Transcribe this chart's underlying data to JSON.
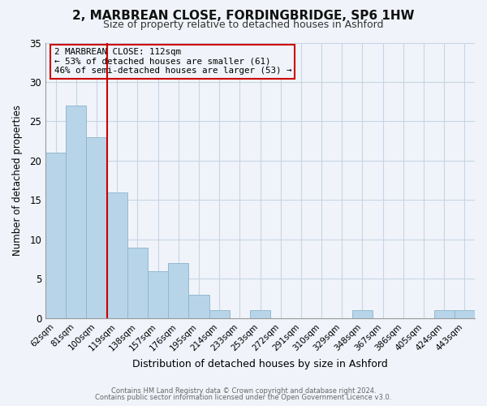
{
  "title": "2, MARBREAN CLOSE, FORDINGBRIDGE, SP6 1HW",
  "subtitle": "Size of property relative to detached houses in Ashford",
  "xlabel": "Distribution of detached houses by size in Ashford",
  "ylabel": "Number of detached properties",
  "footer_lines": [
    "Contains HM Land Registry data © Crown copyright and database right 2024.",
    "Contains public sector information licensed under the Open Government Licence v3.0."
  ],
  "categories": [
    "62sqm",
    "81sqm",
    "100sqm",
    "119sqm",
    "138sqm",
    "157sqm",
    "176sqm",
    "195sqm",
    "214sqm",
    "233sqm",
    "253sqm",
    "272sqm",
    "291sqm",
    "310sqm",
    "329sqm",
    "348sqm",
    "367sqm",
    "386sqm",
    "405sqm",
    "424sqm",
    "443sqm"
  ],
  "values": [
    21,
    27,
    23,
    16,
    9,
    6,
    7,
    3,
    1,
    0,
    1,
    0,
    0,
    0,
    0,
    1,
    0,
    0,
    0,
    1,
    1
  ],
  "bar_color": "#b8d4e8",
  "bar_edge_color": "#8ab4cc",
  "vline_x_index": 2.5,
  "vline_color": "#cc0000",
  "annotation_box": {
    "title": "2 MARBREAN CLOSE: 112sqm",
    "line2": "← 53% of detached houses are smaller (61)",
    "line3": "46% of semi-detached houses are larger (53) →",
    "box_color": "#cc0000",
    "text_color": "#000000"
  },
  "ylim": [
    0,
    35
  ],
  "yticks": [
    0,
    5,
    10,
    15,
    20,
    25,
    30,
    35
  ],
  "background_color": "#f0f4fa",
  "grid_color": "#c8d4e4",
  "title_fontsize": 11,
  "subtitle_fontsize": 9
}
